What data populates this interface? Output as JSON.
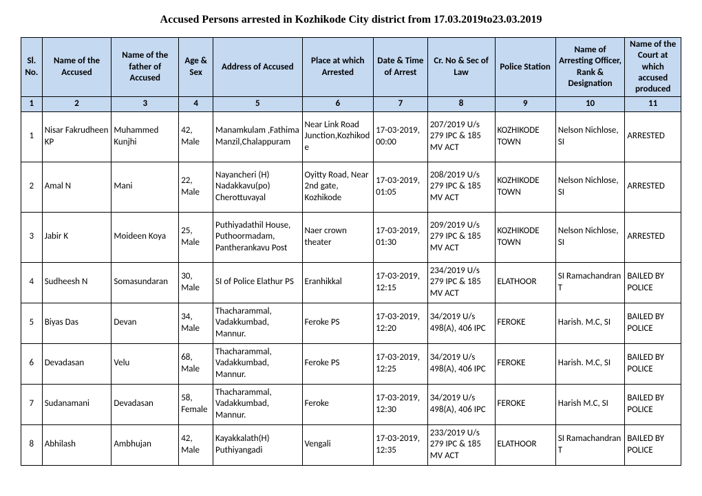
{
  "title": "Accused Persons arrested in   Kozhikode City    district from    17.03.2019to23.03.2019",
  "table": {
    "col_widths_pct": [
      3.2,
      10.5,
      10.2,
      5.2,
      13.5,
      10.8,
      8.2,
      10.2,
      9.2,
      10.5,
      8.5
    ],
    "header_bg": "#c5d9f1",
    "border_color": "#000000",
    "headers": [
      "Sl. No.",
      "Name of the Accused",
      "Name of the father of Accused",
      "Age & Sex",
      "Address of Accused",
      "Place at which Arrested",
      "Date & Time of Arrest",
      "Cr. No & Sec of Law",
      "Police Station",
      "Name of Arresting Officer, Rank & Designation",
      "Name of the Court at which accused produced"
    ],
    "numrow": [
      "1",
      "2",
      "3",
      "4",
      "5",
      "6",
      "7",
      "8",
      "9",
      "10",
      "11"
    ],
    "rows": [
      {
        "tall": true,
        "cells": [
          "1",
          "Nisar Fakrudheen KP",
          "Muhammed Kunjhi",
          "42, Male",
          "Manamkulam ,Fathima Manzil,Chalappuram",
          "Near Link Road Junction,Kozhikode",
          "17-03-2019, 00:00",
          "207/2019 U/s 279 IPC & 185 MV ACT",
          "KOZHIKODE TOWN",
          "Nelson Nichlose, SI",
          "ARRESTED"
        ]
      },
      {
        "tall": true,
        "cells": [
          "2",
          "Amal N",
          "Mani",
          "22, Male",
          "Nayancheri (H) Nadakkavu(po) Cherottuvayal",
          "Oyitty Road, Near 2nd gate, Kozhikode",
          "17-03-2019, 01:05",
          "208/2019 U/s 279 IPC & 185 MV ACT",
          "KOZHIKODE TOWN",
          "Nelson Nichlose, SI",
          "ARRESTED"
        ]
      },
      {
        "tall": true,
        "cells": [
          "3",
          "Jabir K",
          "Moideen Koya",
          "25, Male",
          "Puthiyadathil House, Puthoormadam, Pantherankavu Post",
          "Naer crown theater",
          "17-03-2019, 01:30",
          "209/2019 U/s 279 IPC & 185 MV ACT",
          "KOZHIKODE TOWN",
          "Nelson Nichlose, SI",
          "ARRESTED"
        ]
      },
      {
        "tall": false,
        "cells": [
          "4",
          "Sudheesh N",
          "Somasundaran",
          "30, Male",
          "SI of Police Elathur PS",
          "Eranhikkal",
          "17-03-2019, 12:15",
          "234/2019 U/s 279 IPC & 185 MV ACT",
          "ELATHOOR",
          "SI Ramachandran T",
          "BAILED BY POLICE"
        ]
      },
      {
        "tall": false,
        "cells": [
          "5",
          "Biyas Das",
          "Devan",
          "34, Male",
          "Thacharammal, Vadakkumbad, Mannur.",
          "Feroke PS",
          "17-03-2019, 12:20",
          "34/2019 U/s 498(A), 406 IPC",
          "FEROKE",
          "Harish. M.C, SI",
          "BAILED BY POLICE"
        ]
      },
      {
        "tall": false,
        "cells": [
          "6",
          "Devadasan",
          "Velu",
          "68, Male",
          "Thacharammal, Vadakkumbad, Mannur.",
          "Feroke PS",
          "17-03-2019, 12:25",
          "34/2019 U/s 498(A), 406 IPC",
          "FEROKE",
          "Harish. M.C, SI",
          "BAILED BY POLICE"
        ]
      },
      {
        "tall": false,
        "cells": [
          "7",
          "Sudanamani",
          "Devadasan",
          "58, Female",
          "Thacharammal, Vadakkumbad, Mannur.",
          "Feroke",
          "17-03-2019, 12:30",
          "34/2019 U/s 498(A), 406 IPC",
          "FEROKE",
          "Harish M.C, SI",
          "BAILED BY POLICE"
        ]
      },
      {
        "tall": false,
        "cells": [
          "8",
          "Abhilash",
          "Ambhujan",
          "42, Male",
          "Kayakkalath(H) Puthiyangadi",
          "Vengali",
          "17-03-2019, 12:35",
          "233/2019 U/s 279 IPC & 185 MV ACT",
          "ELATHOOR",
          "SI Ramachandran T",
          "BAILED BY POLICE"
        ]
      }
    ],
    "col_align": [
      "c",
      "l",
      "l",
      "l",
      "l",
      "l",
      "l",
      "l",
      "l",
      "l",
      "l"
    ]
  }
}
